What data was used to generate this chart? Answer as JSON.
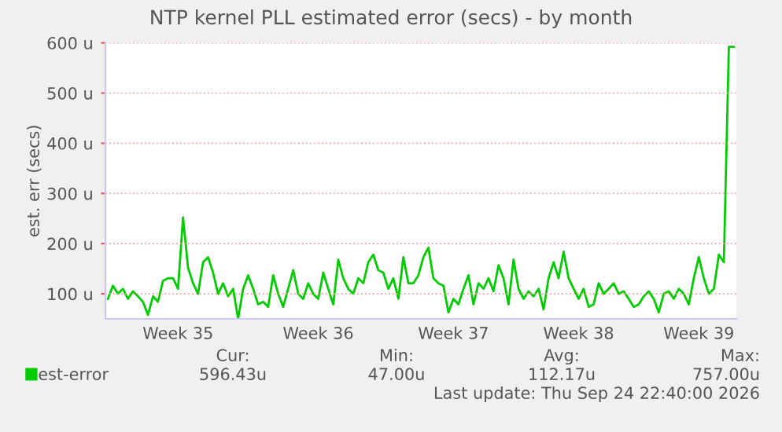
{
  "chart_data": {
    "type": "line",
    "title": "NTP kernel PLL estimated error (secs) - by month",
    "ylabel": "est. err (secs)",
    "categories": [
      null,
      null,
      null,
      null,
      null,
      null,
      null,
      null,
      null,
      null,
      null,
      null,
      null,
      null,
      "Week 35",
      null,
      null,
      null,
      null,
      null,
      null,
      null,
      null,
      null,
      null,
      null,
      null,
      null,
      null,
      null,
      null,
      null,
      null,
      null,
      null,
      null,
      null,
      null,
      null,
      null,
      null,
      null,
      "Week 36",
      null,
      null,
      null,
      null,
      null,
      null,
      null,
      null,
      null,
      null,
      null,
      null,
      null,
      null,
      null,
      null,
      null,
      null,
      null,
      null,
      null,
      null,
      null,
      null,
      null,
      null,
      "Week 37",
      null,
      null,
      null,
      null,
      null,
      null,
      null,
      null,
      null,
      null,
      null,
      null,
      null,
      null,
      null,
      null,
      null,
      null,
      null,
      null,
      null,
      null,
      null,
      null,
      "Week 38",
      null,
      null,
      null,
      null,
      null,
      null,
      null,
      null,
      null,
      null,
      null,
      null,
      null,
      null,
      null,
      null,
      null,
      null,
      null,
      null,
      null,
      null,
      null,
      "Week 39",
      null,
      null,
      null,
      null,
      null,
      null,
      null
    ],
    "series": [
      {
        "name": "est-error",
        "color": "#00cc00",
        "values": [
          90,
          116,
          100,
          110,
          90,
          105,
          95,
          84,
          58,
          95,
          84,
          126,
          131,
          131,
          110,
          252,
          152,
          121,
          100,
          163,
          173,
          142,
          100,
          121,
          95,
          110,
          50,
          110,
          137,
          110,
          79,
          84,
          74,
          137,
          100,
          74,
          110,
          147,
          100,
          90,
          121,
          100,
          90,
          142,
          110,
          79,
          168,
          131,
          110,
          100,
          131,
          121,
          163,
          178,
          147,
          142,
          110,
          131,
          90,
          173,
          121,
          121,
          137,
          173,
          192,
          131,
          121,
          116,
          63,
          90,
          79,
          110,
          137,
          79,
          121,
          110,
          131,
          105,
          157,
          131,
          79,
          168,
          110,
          90,
          105,
          95,
          110,
          69,
          131,
          163,
          131,
          184,
          131,
          110,
          90,
          110,
          74,
          79,
          121,
          100,
          110,
          121,
          100,
          105,
          90,
          74,
          79,
          95,
          105,
          90,
          63,
          100,
          105,
          90,
          110,
          100,
          79,
          131,
          173,
          131,
          100,
          110,
          178,
          163,
          592,
          592
        ]
      }
    ],
    "ylim": [
      50,
      600
    ],
    "yticks": [
      {
        "value": 100,
        "label": "100 u"
      },
      {
        "value": 200,
        "label": "200 u"
      },
      {
        "value": 300,
        "label": "300 u"
      },
      {
        "value": 400,
        "label": "400 u"
      },
      {
        "value": 500,
        "label": "500 u"
      },
      {
        "value": 600,
        "label": "600 u"
      }
    ],
    "grid": "y",
    "legend": "bottom",
    "marker": "none",
    "line_style": "solid",
    "annotations": [
      "Cur:",
      "Min:",
      "Avg:",
      "Max:",
      "596.43u",
      "47.00u",
      "112.17u",
      "757.00u",
      "Last update: Thu Sep 24 22:40:00 2026"
    ]
  }
}
